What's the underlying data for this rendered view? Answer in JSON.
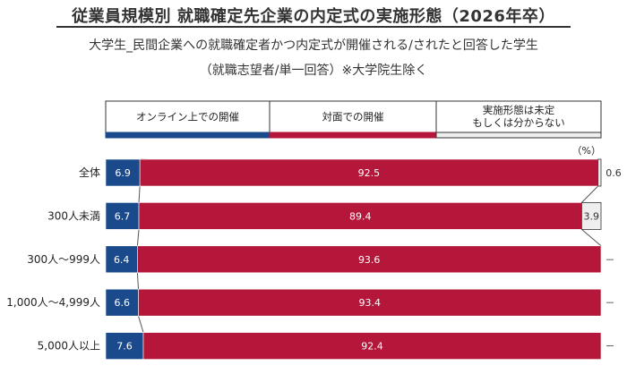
{
  "title": "従業員規模別 就職確定先企業の内定式の実施形態（2026年卒）",
  "subtitle": "大学生_民間企業への就職確定者かつ内定式が開催される/されたと回答した学生",
  "note": "（就職志望者/単一回答）※大学院生除く",
  "unit_label": "（%）",
  "colors": {
    "online": "#1a4a8c",
    "in_person": "#b5173a",
    "undecided": "#eeeeee"
  },
  "chart_data": {
    "type": "bar",
    "stacked": true,
    "orientation": "horizontal",
    "percent": true,
    "legend_position": "top",
    "categories": [
      "全体",
      "300人未満",
      "300人～999人",
      "1,000人～4,999人",
      "5,000人以上"
    ],
    "series": [
      {
        "name": "オンライン上での開催",
        "values": [
          6.9,
          6.7,
          6.4,
          6.6,
          7.6
        ]
      },
      {
        "name": "対面での開催",
        "values": [
          92.5,
          89.4,
          93.6,
          93.4,
          92.4
        ]
      },
      {
        "name": "実施形態は未定 もしくは分からない",
        "values": [
          0.6,
          3.9,
          null,
          null,
          null
        ]
      }
    ],
    "value_labels": [
      [
        "6.9",
        "92.5",
        "0.6"
      ],
      [
        "6.7",
        "89.4",
        "3.9"
      ],
      [
        "6.4",
        "93.6",
        "－"
      ],
      [
        "6.6",
        "93.4",
        "－"
      ],
      [
        "7.6",
        "92.4",
        "－"
      ]
    ],
    "legend_lines": [
      [
        "オンライン上での開催"
      ],
      [
        "対面での開催"
      ],
      [
        "実施形態は未定",
        "もしくは分からない"
      ]
    ]
  }
}
